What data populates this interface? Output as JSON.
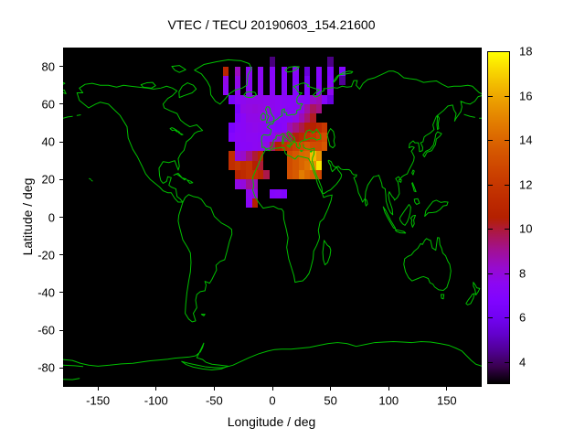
{
  "title": "VTEC / TECU 20190603_154.21600",
  "axes": {
    "x": {
      "label": "Longitude / deg",
      "range": [
        -180,
        180
      ],
      "ticks": [
        -150,
        -100,
        -50,
        0,
        50,
        100,
        150
      ]
    },
    "y": {
      "label": "Latitude / deg",
      "range": [
        -90,
        90
      ],
      "ticks": [
        80,
        60,
        40,
        20,
        0,
        -20,
        -40,
        -60,
        -80
      ]
    }
  },
  "colorbar": {
    "ticks": [
      4,
      6,
      8,
      10,
      12,
      14,
      16,
      18
    ],
    "range": [
      3,
      18
    ],
    "colormap": "gnuplot"
  },
  "colors": {
    "page_background": "#ffffff",
    "map_background": "#000000",
    "coastline": "#00c000",
    "text": "#000000",
    "colormap_low": "#000000",
    "colormap_mid": "#b42000",
    "colormap_high": "#ffff00"
  },
  "chart_data": {
    "type": "heatmap",
    "title": "VTEC / TECU 20190603_154.21600",
    "xlabel": "Longitude / deg",
    "ylabel": "Latitude / deg",
    "xlim": [
      -180,
      180
    ],
    "ylim": [
      -90,
      90
    ],
    "value_unit": "TECU",
    "value_range": [
      3,
      18
    ],
    "legend_position": "right-colorbar",
    "grid": {
      "lon_centers_start": -40,
      "lon_step": 5,
      "ncols": 23,
      "lat_top_start": 85,
      "lat_step": -5,
      "nrows": 16,
      "cell_lon_halfwidth": 2.5,
      "values": [
        [
          null,
          null,
          null,
          null,
          null,
          null,
          null,
          null,
          4.2,
          null,
          null,
          null,
          null,
          null,
          null,
          null,
          null,
          null,
          4.3,
          null,
          null,
          null,
          null
        ],
        [
          11.0,
          null,
          8.5,
          null,
          7.5,
          null,
          7.5,
          null,
          7.2,
          null,
          7.2,
          null,
          7.2,
          null,
          5.5,
          null,
          7.2,
          null,
          6.8,
          null,
          7.0,
          null,
          null
        ],
        [
          7.8,
          null,
          7.8,
          null,
          7.5,
          null,
          7.5,
          null,
          7.3,
          null,
          7.2,
          null,
          7.0,
          null,
          6.2,
          null,
          7.0,
          null,
          7.0,
          null,
          4.5,
          null,
          null
        ],
        [
          7.5,
          null,
          7.6,
          null,
          7.5,
          null,
          7.5,
          null,
          7.4,
          null,
          7.2,
          null,
          7.1,
          null,
          7.0,
          null,
          7.4,
          null,
          7.5,
          null,
          null,
          null,
          null
        ],
        [
          null,
          6.3,
          7.4,
          7.6,
          7.8,
          7.8,
          7.8,
          7.7,
          7.6,
          7.5,
          7.4,
          7.3,
          7.3,
          7.4,
          7.2,
          8.3,
          8.6,
          7.1,
          5.6,
          null,
          null,
          null,
          null
        ],
        [
          null,
          null,
          6.4,
          7.8,
          7.9,
          8.0,
          7.9,
          7.8,
          7.6,
          7.5,
          7.4,
          7.3,
          7.4,
          7.8,
          8.8,
          9.6,
          9.2,
          null,
          null,
          null,
          null,
          null,
          null
        ],
        [
          null,
          null,
          6.8,
          7.4,
          7.8,
          7.8,
          7.8,
          7.7,
          7.5,
          7.3,
          7.2,
          7.3,
          7.8,
          8.6,
          9.4,
          10.2,
          null,
          null,
          null,
          null,
          null,
          null,
          null
        ],
        [
          null,
          6.5,
          7.2,
          7.4,
          7.6,
          7.7,
          7.6,
          7.4,
          7.2,
          7.1,
          7.3,
          8.6,
          9.2,
          9.8,
          10.4,
          10.6,
          11.2,
          12.0,
          null,
          null,
          null,
          null,
          null
        ],
        [
          null,
          7.0,
          7.3,
          7.4,
          7.5,
          7.5,
          7.4,
          7.3,
          7.6,
          8.2,
          9.0,
          9.6,
          10.4,
          11.0,
          11.6,
          12.0,
          12.5,
          13.0,
          null,
          null,
          null,
          null,
          null
        ],
        [
          null,
          null,
          7.2,
          7.3,
          7.4,
          7.5,
          7.6,
          7.8,
          9.5,
          10.5,
          11.5,
          12.0,
          12.5,
          13.0,
          13.5,
          13.0,
          13.0,
          13.5,
          null,
          null,
          null,
          null,
          null
        ],
        [
          null,
          11.5,
          8.0,
          8.3,
          9.2,
          10.0,
          10.8,
          null,
          null,
          null,
          null,
          13.0,
          13.5,
          14.0,
          14.2,
          16.5,
          15.5,
          null,
          null,
          null,
          null,
          null,
          null
        ],
        [
          null,
          11.5,
          12.0,
          11.5,
          11.8,
          10.5,
          10.0,
          null,
          null,
          null,
          null,
          13.0,
          13.5,
          14.0,
          14.5,
          15.5,
          17.5,
          null,
          null,
          null,
          null,
          null,
          null
        ],
        [
          null,
          null,
          10.8,
          11.3,
          11.8,
          11.5,
          11.0,
          9.8,
          null,
          null,
          null,
          13.2,
          13.6,
          14.8,
          14.2,
          13.6,
          12.8,
          null,
          null,
          null,
          null,
          null,
          null
        ],
        [
          null,
          null,
          7.8,
          8.0,
          9.0,
          8.6,
          null,
          null,
          null,
          null,
          null,
          null,
          null,
          null,
          null,
          null,
          null,
          null,
          null,
          null,
          null,
          null,
          null
        ],
        [
          null,
          null,
          null,
          null,
          7.5,
          8.0,
          null,
          null,
          7.0,
          7.2,
          6.8,
          null,
          null,
          null,
          null,
          null,
          null,
          null,
          null,
          null,
          null,
          null,
          null
        ],
        [
          null,
          null,
          null,
          null,
          7.3,
          10.5,
          null,
          null,
          null,
          null,
          null,
          null,
          null,
          null,
          null,
          null,
          null,
          null,
          null,
          null,
          null,
          null,
          null
        ]
      ]
    }
  }
}
